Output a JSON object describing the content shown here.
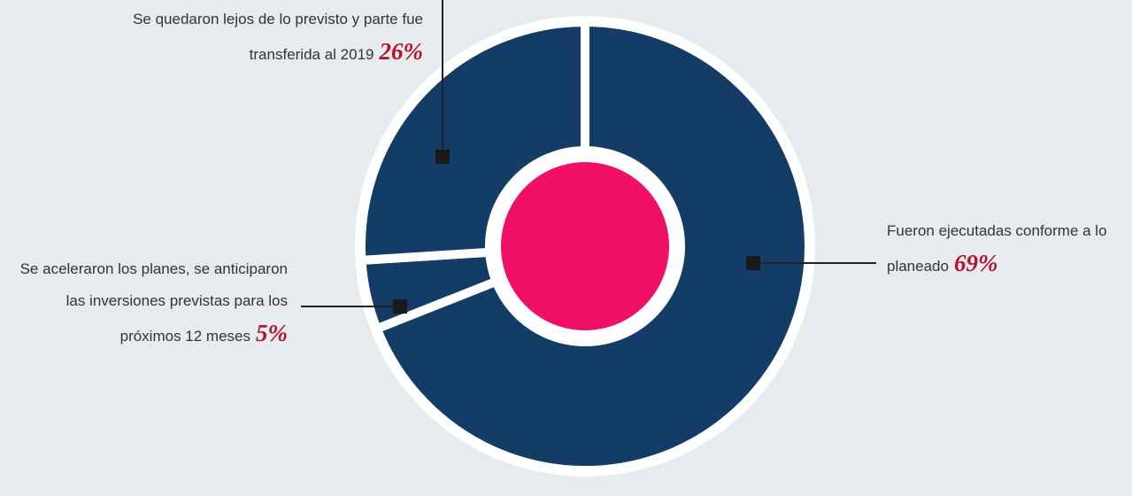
{
  "chart_data": {
    "type": "donut",
    "categories": [
      "Fueron ejecutadas conforme a lo planeado",
      "Se aceleraron los planes, se anticiparon las inversiones previstas para los próximos 12 meses",
      "Se quedaron lejos de lo previsto y parte fue transferida al 2019"
    ],
    "values": [
      69,
      5,
      26
    ],
    "value_labels": [
      "69%",
      "5%",
      "26%"
    ],
    "colors": [
      "#133c66",
      "#133c66",
      "#133c66"
    ],
    "center_color": "#ef1066"
  }
}
